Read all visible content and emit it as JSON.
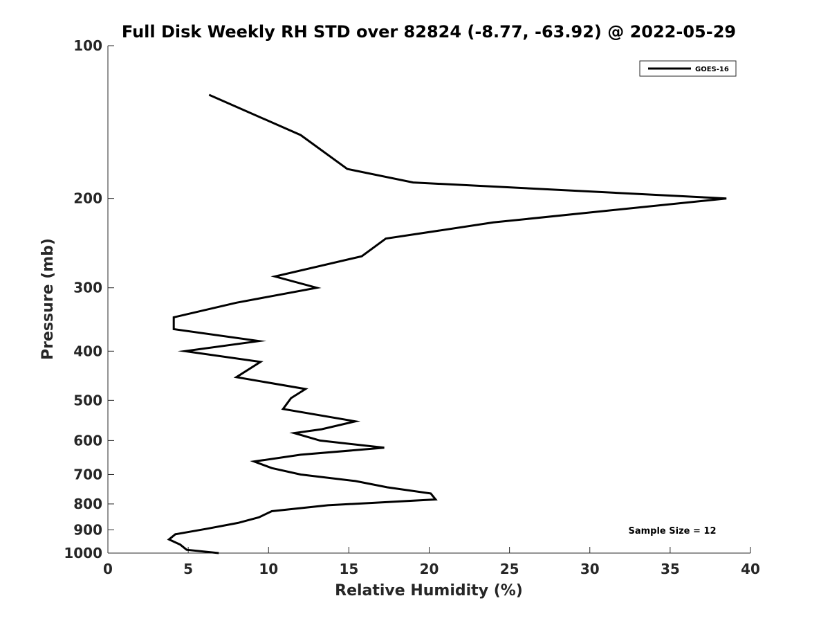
{
  "chart_data": {
    "type": "line",
    "title": "Full Disk Weekly RH STD over 82824 (-8.77, -63.92) @ 2022-05-29",
    "xlabel": "Relative Humidity (%)",
    "ylabel": "Pressure (mb)",
    "xlim": [
      0,
      40
    ],
    "ylim": [
      100,
      1000
    ],
    "y_scale": "log",
    "y_reversed": true,
    "grid": false,
    "legend_position": "top-right",
    "x_ticks": [
      0,
      5,
      10,
      15,
      20,
      25,
      30,
      35,
      40
    ],
    "x_tick_labels": [
      "0",
      "5",
      "10",
      "15",
      "20",
      "25",
      "30",
      "35",
      "40"
    ],
    "y_ticks": [
      100,
      200,
      300,
      400,
      500,
      600,
      700,
      800,
      900,
      1000
    ],
    "y_tick_labels": [
      "100",
      "200",
      "300",
      "400",
      "500",
      "600",
      "700",
      "800",
      "900",
      "1000"
    ],
    "series": [
      {
        "name": "GOES-16",
        "color": "#000000",
        "points": [
          [
            6.3,
            125
          ],
          [
            12,
            150
          ],
          [
            14.9,
            175
          ],
          [
            19,
            186
          ],
          [
            38.5,
            200
          ],
          [
            24,
            223
          ],
          [
            17.3,
            240
          ],
          [
            15.8,
            260
          ],
          [
            10.4,
            285
          ],
          [
            13,
            300
          ],
          [
            8,
            321
          ],
          [
            4.1,
            343
          ],
          [
            4.1,
            362
          ],
          [
            9.4,
            382
          ],
          [
            4.8,
            400
          ],
          [
            9.5,
            420
          ],
          [
            8,
            450
          ],
          [
            12.3,
            475
          ],
          [
            11.4,
            495
          ],
          [
            10.9,
            520
          ],
          [
            15.4,
            550
          ],
          [
            13.3,
            570
          ],
          [
            11.6,
            580
          ],
          [
            13.2,
            600
          ],
          [
            17.2,
            620
          ],
          [
            12,
            640
          ],
          [
            9.1,
            660
          ],
          [
            10.2,
            680
          ],
          [
            12,
            700
          ],
          [
            15.4,
            721
          ],
          [
            17.4,
            742
          ],
          [
            20.1,
            763
          ],
          [
            20.4,
            784
          ],
          [
            13.7,
            805
          ],
          [
            10.2,
            827
          ],
          [
            9.4,
            850
          ],
          [
            8.1,
            872
          ],
          [
            6.2,
            895
          ],
          [
            4.2,
            918
          ],
          [
            3.8,
            940
          ],
          [
            4.5,
            962
          ],
          [
            4.9,
            985
          ],
          [
            6.9,
            1000
          ]
        ]
      }
    ],
    "annotations": [
      "Sample Size = 12"
    ]
  }
}
